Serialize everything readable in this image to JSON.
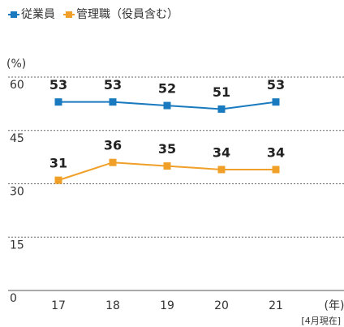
{
  "chart_data": {
    "type": "line",
    "categories": [
      "17",
      "18",
      "19",
      "20",
      "21"
    ],
    "series": [
      {
        "name": "従業員",
        "color": "#1a7abf",
        "values": [
          53,
          53,
          52,
          51,
          53
        ]
      },
      {
        "name": "管理職（役員含む）",
        "color": "#f0a028",
        "values": [
          31,
          36,
          35,
          34,
          34
        ]
      }
    ],
    "y_label": "(%)",
    "x_label": "(年)",
    "annotation": "[4月現在]",
    "ylim": [
      0,
      60
    ],
    "yticks": [
      0,
      15,
      30,
      45,
      60
    ],
    "grid": true,
    "legend": "top-left"
  }
}
